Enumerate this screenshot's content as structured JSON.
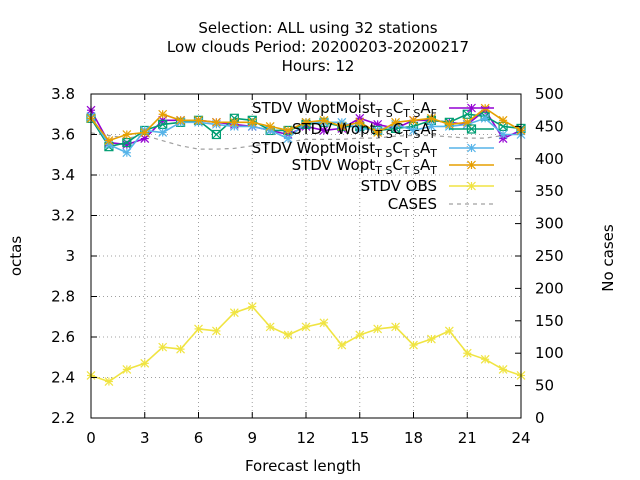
{
  "chart_data": {
    "type": "line",
    "title_lines": [
      "Selection: ALL using    32 stations",
      "Low clouds   Period: 20200203-20200217",
      "Hours:  12"
    ],
    "xlabel": "Forecast length",
    "ylabel": "octas",
    "y2label": "No cases",
    "xlim": [
      0,
      24
    ],
    "ylim": [
      2.2,
      3.8
    ],
    "y2lim": [
      0,
      500
    ],
    "xticks": [
      0,
      3,
      6,
      9,
      12,
      15,
      18,
      21,
      24
    ],
    "yticks": [
      2.2,
      2.4,
      2.6,
      2.8,
      3,
      3.2,
      3.4,
      3.6,
      3.8
    ],
    "y2ticks": [
      0,
      50,
      100,
      150,
      200,
      250,
      300,
      350,
      400,
      450,
      500
    ],
    "grid": true,
    "legend_position": "top-right",
    "x": [
      0,
      1,
      2,
      3,
      4,
      5,
      6,
      7,
      8,
      9,
      10,
      11,
      12,
      13,
      14,
      15,
      16,
      17,
      18,
      19,
      20,
      21,
      22,
      23,
      24
    ],
    "series": [
      {
        "legend_main": "STDV WoptMoist",
        "legend_sub": "T S",
        "legend_main2": "C",
        "legend_sub2": "T S",
        "legend_main3": "A",
        "legend_sub3": "F",
        "color": "#9400d3",
        "marker": "star",
        "axis": "y",
        "values": [
          3.72,
          3.56,
          3.55,
          3.58,
          3.67,
          3.67,
          3.67,
          3.66,
          3.65,
          3.64,
          3.62,
          3.6,
          3.64,
          3.62,
          3.63,
          3.68,
          3.65,
          3.63,
          3.67,
          3.67,
          3.66,
          3.65,
          3.72,
          3.58,
          3.62
        ]
      },
      {
        "legend_main": "STDV Wopt",
        "legend_sub": "T S",
        "legend_main2": "C",
        "legend_sub2": "T S",
        "legend_main3": "A",
        "legend_sub3": "F",
        "color": "#009e73",
        "marker": "box-x",
        "axis": "y",
        "values": [
          3.68,
          3.54,
          3.56,
          3.62,
          3.65,
          3.66,
          3.67,
          3.6,
          3.68,
          3.67,
          3.62,
          3.62,
          3.65,
          3.66,
          3.64,
          3.64,
          3.62,
          3.63,
          3.64,
          3.67,
          3.66,
          3.7,
          3.69,
          3.64,
          3.63
        ]
      },
      {
        "legend_main": "STDV WoptMoist",
        "legend_sub": "T S",
        "legend_main2": "C",
        "legend_sub2": "T S",
        "legend_main3": "A",
        "legend_sub3": "T",
        "color": "#56b4e9",
        "marker": "star",
        "axis": "y",
        "values": [
          3.69,
          3.55,
          3.51,
          3.62,
          3.61,
          3.66,
          3.66,
          3.65,
          3.64,
          3.64,
          3.62,
          3.58,
          3.66,
          3.66,
          3.66,
          3.63,
          3.62,
          3.65,
          3.62,
          3.64,
          3.64,
          3.65,
          3.68,
          3.6,
          3.6
        ]
      },
      {
        "legend_main": "STDV Wopt",
        "legend_sub": "T S",
        "legend_main2": "C",
        "legend_sub2": "T S",
        "legend_main3": "A",
        "legend_sub3": "T",
        "color": "#e69f00",
        "marker": "star",
        "axis": "y",
        "values": [
          3.68,
          3.57,
          3.6,
          3.61,
          3.7,
          3.67,
          3.67,
          3.66,
          3.66,
          3.66,
          3.64,
          3.62,
          3.66,
          3.67,
          3.64,
          3.66,
          3.61,
          3.66,
          3.67,
          3.68,
          3.65,
          3.66,
          3.73,
          3.67,
          3.62
        ]
      },
      {
        "legend_main": "STDV OBS",
        "color": "#f0e442",
        "marker": "star",
        "axis": "y",
        "values": [
          2.41,
          2.38,
          2.44,
          2.47,
          2.55,
          2.54,
          2.64,
          2.63,
          2.72,
          2.75,
          2.65,
          2.61,
          2.65,
          2.67,
          2.56,
          2.61,
          2.64,
          2.65,
          2.56,
          2.59,
          2.63,
          2.52,
          2.49,
          2.44,
          2.41
        ]
      },
      {
        "legend_main": "CASES",
        "color": "#a0a0a0",
        "dashed": true,
        "axis": "y2",
        "values": [
          440,
          436,
          432,
          436,
          428,
          420,
          415,
          415,
          416,
          420,
          423,
          426,
          430,
          430,
          430,
          432,
          432,
          435,
          436,
          436,
          434,
          432,
          432,
          436,
          440
        ]
      }
    ]
  }
}
